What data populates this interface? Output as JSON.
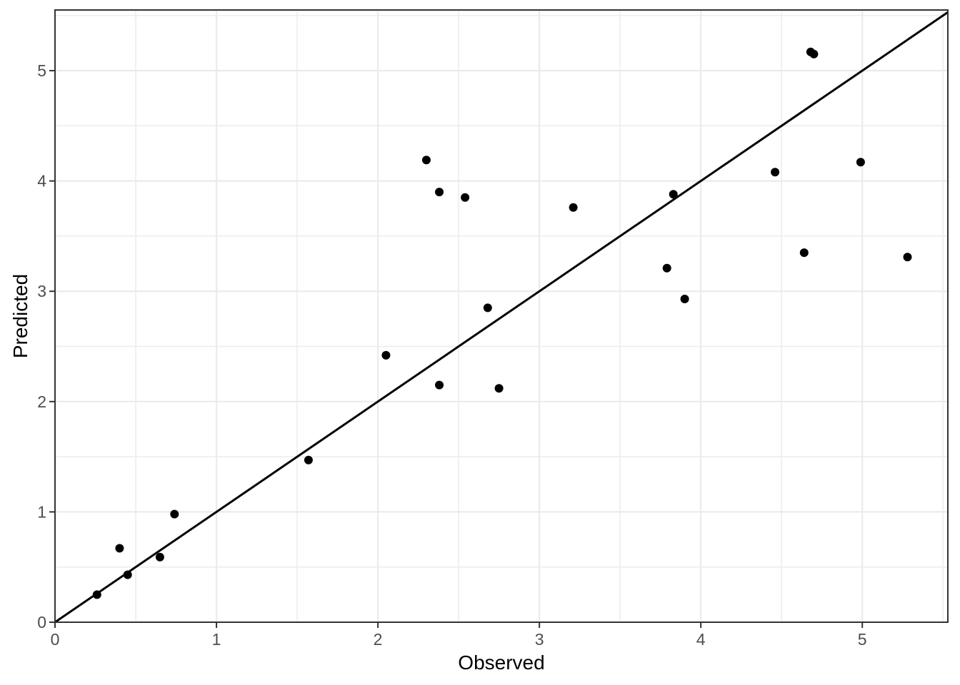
{
  "chart_data": {
    "type": "scatter",
    "title": "",
    "xlabel": "Observed",
    "ylabel": "Predicted",
    "xlim": [
      0,
      5.53
    ],
    "ylim": [
      0,
      5.55
    ],
    "x_ticks": [
      0,
      1,
      2,
      3,
      4,
      5
    ],
    "y_ticks": [
      0,
      1,
      2,
      3,
      4,
      5
    ],
    "minor_step": 0.5,
    "grid": "major-and-minor",
    "legend": "none",
    "identity_line": {
      "slope": 1,
      "intercept": 0
    },
    "points": [
      [
        0.26,
        0.25
      ],
      [
        0.4,
        0.67
      ],
      [
        0.45,
        0.43
      ],
      [
        0.65,
        0.59
      ],
      [
        0.74,
        0.98
      ],
      [
        1.57,
        1.47
      ],
      [
        2.05,
        2.42
      ],
      [
        2.3,
        4.19
      ],
      [
        2.38,
        3.9
      ],
      [
        2.38,
        2.15
      ],
      [
        2.54,
        3.85
      ],
      [
        2.68,
        2.85
      ],
      [
        2.75,
        2.12
      ],
      [
        3.21,
        3.76
      ],
      [
        3.79,
        3.21
      ],
      [
        3.83,
        3.88
      ],
      [
        3.9,
        2.93
      ],
      [
        4.46,
        4.08
      ],
      [
        4.64,
        3.35
      ],
      [
        4.68,
        5.17
      ],
      [
        4.7,
        5.15
      ],
      [
        4.99,
        4.17
      ],
      [
        5.28,
        3.31
      ]
    ],
    "colors": {
      "background": "#ffffff",
      "panel_background": "#ffffff",
      "point": "#000000",
      "identity_line": "#000000",
      "grid_major": "#ebebeb",
      "grid_minor": "#ededed",
      "panel_border": "#333333",
      "tick_mark": "#333333",
      "tick_label": "#4d4d4d",
      "axis_title": "#000000"
    }
  }
}
